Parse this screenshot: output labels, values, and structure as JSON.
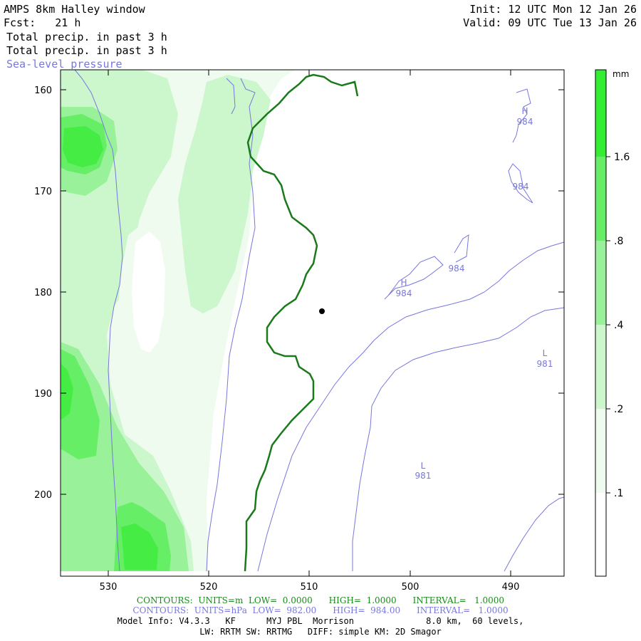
{
  "header": {
    "title": "AMPS 8km Halley window",
    "fcst": "Fcst:   21 h",
    "init": "Init: 12 UTC Mon 12 Jan 26",
    "valid": "Valid: 09 UTC Tue 13 Jan 26",
    "field1": "Total precip. in past 3 h",
    "field2": "Total precip. in past 3 h",
    "field3": "Sea-level pressure"
  },
  "axes": {
    "x_ticks": [
      "530",
      "520",
      "510",
      "500",
      "490"
    ],
    "y_ticks": [
      "160",
      "170",
      "180",
      "190",
      "200"
    ]
  },
  "colorbar": {
    "unit": "mm",
    "labels": [
      "1.6",
      ".8",
      ".4",
      ".2",
      ".1"
    ],
    "colors": [
      "#33ee33",
      "#66ee66",
      "#99f199",
      "#ccf6cc",
      "#eefbee",
      "#ffffff"
    ]
  },
  "pressure_labels": [
    {
      "kind": "H",
      "value": "984"
    },
    {
      "kind": "",
      "value": "984"
    },
    {
      "kind": "",
      "value": "984"
    },
    {
      "kind": "H",
      "value": "984"
    },
    {
      "kind": "L",
      "value": "981"
    },
    {
      "kind": "L",
      "value": "981"
    }
  ],
  "footer": {
    "green": "CONTOURS:  UNITS=m  LOW=  0.0000      HIGH=  1.0000      INTERVAL=   1.0000",
    "blue": "CONTOURS:  UNITS=hPa  LOW=  982.00      HIGH=  984.00      INTERVAL=   1.0000",
    "model1": "Model Info: V4.3.3   KF      MYJ PBL  Morrison              8.0 km,  60 levels,",
    "model2": "LW: RRTM SW: RRTMG   DIFF: simple KM: 2D Smagor"
  }
}
